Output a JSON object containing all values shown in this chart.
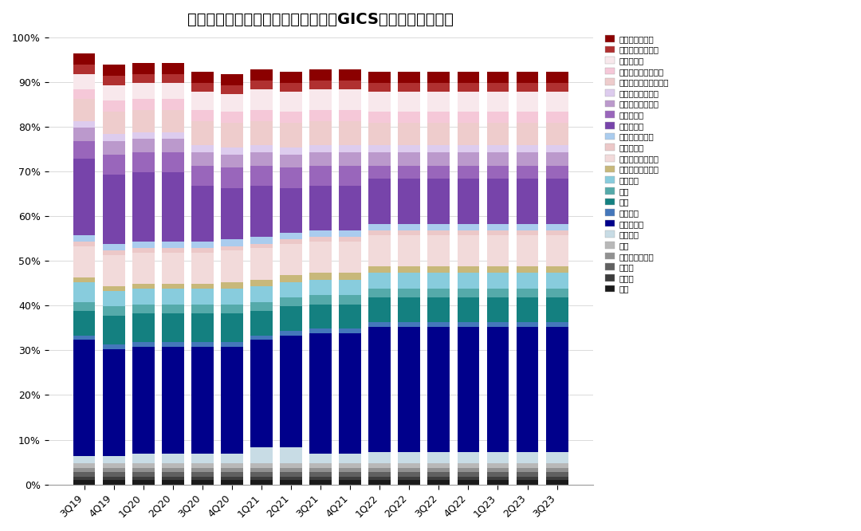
{
  "title": "外资头部主动型管理机构持有中资股GICS二级行业仓位分布",
  "categories": [
    "3Q19",
    "4Q19",
    "1Q20",
    "2Q20",
    "3Q20",
    "4Q20",
    "1Q21",
    "2Q21",
    "3Q21",
    "4Q21",
    "1Q22",
    "2Q22",
    "3Q22",
    "4Q22",
    "1Q23",
    "2Q23",
    "3Q23"
  ],
  "layers": [
    {
      "label": "能源",
      "color": "#1A1A1A",
      "values": [
        1.0,
        1.0,
        1.0,
        1.0,
        1.0,
        1.0,
        1.0,
        1.0,
        1.0,
        1.0,
        1.0,
        1.0,
        1.0,
        1.0,
        1.0,
        1.0,
        1.0
      ]
    },
    {
      "label": "原材料",
      "color": "#3C3C3C",
      "values": [
        0.8,
        0.8,
        0.8,
        0.8,
        0.8,
        0.8,
        0.8,
        0.8,
        0.8,
        0.8,
        0.8,
        0.8,
        0.8,
        0.8,
        0.8,
        0.8,
        0.8
      ]
    },
    {
      "label": "资本品",
      "color": "#606060",
      "values": [
        1.0,
        1.0,
        1.0,
        1.0,
        1.0,
        1.0,
        1.0,
        1.0,
        1.0,
        1.0,
        1.0,
        1.0,
        1.0,
        1.0,
        1.0,
        1.0,
        1.0
      ]
    },
    {
      "label": "商业和专业服务",
      "color": "#909090",
      "values": [
        0.8,
        0.8,
        0.8,
        0.8,
        0.8,
        0.8,
        0.8,
        0.8,
        0.8,
        0.8,
        0.8,
        0.8,
        0.8,
        0.8,
        0.8,
        0.8,
        0.8
      ]
    },
    {
      "label": "交运",
      "color": "#B8B8B8",
      "values": [
        1.2,
        1.2,
        1.2,
        1.2,
        1.2,
        1.2,
        1.2,
        1.2,
        1.2,
        1.2,
        1.2,
        1.2,
        1.2,
        1.2,
        1.2,
        1.2,
        1.2
      ]
    },
    {
      "label": "公用事业",
      "color": "#C8DCE5",
      "values": [
        1.5,
        1.5,
        2.0,
        2.0,
        2.0,
        2.0,
        3.5,
        3.5,
        2.0,
        2.0,
        2.5,
        2.5,
        2.5,
        2.5,
        2.5,
        2.5,
        2.5
      ]
    },
    {
      "label": "媒体与娱乐",
      "color": "#00008B",
      "values": [
        26.0,
        24.0,
        24.0,
        24.0,
        24.0,
        24.0,
        24.0,
        25.0,
        27.0,
        27.0,
        28.0,
        28.0,
        28.0,
        28.0,
        28.0,
        28.0,
        28.0
      ]
    },
    {
      "label": "电信服务",
      "color": "#4477BB",
      "values": [
        1.0,
        1.0,
        1.0,
        1.0,
        1.0,
        1.0,
        1.0,
        1.0,
        1.0,
        1.0,
        1.0,
        1.0,
        1.0,
        1.0,
        1.0,
        1.0,
        1.0
      ]
    },
    {
      "label": "银行",
      "color": "#148080",
      "values": [
        5.5,
        6.5,
        6.5,
        6.5,
        6.5,
        6.5,
        5.5,
        5.5,
        5.5,
        5.5,
        5.5,
        5.5,
        5.5,
        5.5,
        5.5,
        5.5,
        5.5
      ]
    },
    {
      "label": "保险",
      "color": "#55AAAA",
      "values": [
        2.0,
        2.0,
        2.0,
        2.0,
        2.0,
        2.0,
        2.0,
        2.0,
        2.0,
        2.0,
        2.0,
        2.0,
        2.0,
        2.0,
        2.0,
        2.0,
        2.0
      ]
    },
    {
      "label": "金融服务",
      "color": "#88CCDD",
      "values": [
        4.5,
        3.5,
        3.5,
        3.5,
        3.5,
        3.5,
        3.5,
        3.5,
        3.5,
        3.5,
        3.5,
        3.5,
        3.5,
        3.5,
        3.5,
        3.5,
        3.5
      ]
    },
    {
      "label": "房地产管理和开发",
      "color": "#C8B87A",
      "values": [
        1.0,
        1.0,
        1.0,
        1.0,
        1.0,
        1.5,
        1.5,
        1.5,
        1.5,
        1.5,
        1.5,
        1.5,
        1.5,
        1.5,
        1.5,
        1.5,
        1.5
      ]
    },
    {
      "label": "食品、饮料与烟草",
      "color": "#F2DADA",
      "values": [
        7.0,
        7.0,
        7.0,
        7.0,
        7.0,
        7.0,
        7.0,
        7.0,
        7.0,
        7.0,
        7.0,
        7.0,
        7.0,
        7.0,
        7.0,
        7.0,
        7.0
      ]
    },
    {
      "label": "必需品零售",
      "color": "#ECC8C8",
      "values": [
        1.0,
        1.0,
        1.0,
        1.0,
        1.0,
        1.0,
        1.0,
        1.0,
        1.0,
        1.0,
        1.0,
        1.0,
        1.0,
        1.0,
        1.0,
        1.0,
        1.0
      ]
    },
    {
      "label": "家庭与个人用品",
      "color": "#AACCEE",
      "values": [
        1.5,
        1.5,
        1.5,
        1.5,
        1.5,
        1.5,
        1.5,
        1.5,
        1.5,
        1.5,
        1.5,
        1.5,
        1.5,
        1.5,
        1.5,
        1.5,
        1.5
      ]
    },
    {
      "label": "可选品零售",
      "color": "#7744AA",
      "values": [
        17.0,
        15.5,
        15.5,
        15.5,
        12.5,
        11.5,
        11.5,
        10.0,
        10.0,
        10.0,
        10.0,
        10.0,
        10.0,
        10.0,
        10.0,
        10.0,
        10.0
      ]
    },
    {
      "label": "消费者服务",
      "color": "#9966BB",
      "values": [
        4.0,
        4.5,
        4.5,
        4.5,
        4.5,
        4.5,
        4.5,
        4.5,
        4.5,
        4.5,
        3.0,
        3.0,
        3.0,
        3.0,
        3.0,
        3.0,
        3.0
      ]
    },
    {
      "label": "耐用消费品与服装",
      "color": "#BB99CC",
      "values": [
        3.0,
        3.0,
        3.0,
        3.0,
        3.0,
        3.0,
        3.0,
        3.0,
        3.0,
        3.0,
        3.0,
        3.0,
        3.0,
        3.0,
        3.0,
        3.0,
        3.0
      ]
    },
    {
      "label": "汽车与汽车零部件",
      "color": "#DDCCEE",
      "values": [
        1.5,
        1.5,
        1.5,
        1.5,
        1.5,
        1.5,
        1.5,
        1.5,
        1.5,
        1.5,
        1.5,
        1.5,
        1.5,
        1.5,
        1.5,
        1.5,
        1.5
      ]
    },
    {
      "label": "制药、生物科技和生命",
      "color": "#EECCCC",
      "values": [
        5.0,
        5.0,
        5.0,
        5.0,
        5.5,
        5.5,
        5.5,
        5.5,
        5.5,
        5.5,
        5.0,
        5.0,
        5.0,
        5.0,
        5.0,
        5.0,
        5.0
      ]
    },
    {
      "label": "医疗保健设备与服务",
      "color": "#F5C8D8",
      "values": [
        2.0,
        2.5,
        2.5,
        2.5,
        2.5,
        2.5,
        2.5,
        2.5,
        2.5,
        2.5,
        2.5,
        2.5,
        2.5,
        2.5,
        2.5,
        2.5,
        2.5
      ]
    },
    {
      "label": "软件与服务",
      "color": "#F8E8EC",
      "values": [
        3.5,
        3.5,
        3.5,
        3.5,
        4.0,
        4.0,
        4.5,
        4.5,
        4.5,
        4.5,
        4.5,
        4.5,
        4.5,
        4.5,
        4.5,
        4.5,
        4.5
      ]
    },
    {
      "label": "半导体产品与设备",
      "color": "#B03030",
      "values": [
        2.0,
        2.0,
        2.0,
        2.0,
        2.0,
        2.0,
        2.0,
        2.0,
        2.0,
        2.0,
        2.0,
        2.0,
        2.0,
        2.0,
        2.0,
        2.0,
        2.0
      ]
    },
    {
      "label": "技术硬件与设备",
      "color": "#8B0000",
      "values": [
        2.5,
        2.5,
        2.5,
        2.5,
        2.5,
        2.5,
        2.5,
        2.5,
        2.5,
        2.5,
        2.5,
        2.5,
        2.5,
        2.5,
        2.5,
        2.5,
        2.5
      ]
    }
  ],
  "legend_order": [
    [
      "技术硬件与设备",
      "#8B0000"
    ],
    [
      "半导体产品与设备",
      "#B03030"
    ],
    [
      "软件与服务",
      "#F8E8EC"
    ],
    [
      "医疗保健设备与服务",
      "#F5C8D8"
    ],
    [
      "制药、生物科技和生命",
      "#EECCCC"
    ],
    [
      "汽车与汽车零部件",
      "#DDCCEE"
    ],
    [
      "耐用消费品与服装",
      "#BB99CC"
    ],
    [
      "消费者服务",
      "#9966BB"
    ],
    [
      "可选品零售",
      "#7744AA"
    ],
    [
      "家庭与个人用品",
      "#AACCEE"
    ],
    [
      "必需品零售",
      "#ECC8C8"
    ],
    [
      "食品、饮料与烟草",
      "#F2DADA"
    ],
    [
      "房地产管理和开发",
      "#C8B87A"
    ],
    [
      "金融服务",
      "#88CCDD"
    ],
    [
      "保险",
      "#55AAAA"
    ],
    [
      "银行",
      "#148080"
    ],
    [
      "电信服务",
      "#4477BB"
    ],
    [
      "媒体与娱乐",
      "#00008B"
    ],
    [
      "公用事业",
      "#C8DCE5"
    ],
    [
      "交运",
      "#B8B8B8"
    ],
    [
      "商业和专业服务",
      "#909090"
    ],
    [
      "资本品",
      "#606060"
    ],
    [
      "原材料",
      "#3C3C3C"
    ],
    [
      "能源",
      "#1A1A1A"
    ]
  ]
}
